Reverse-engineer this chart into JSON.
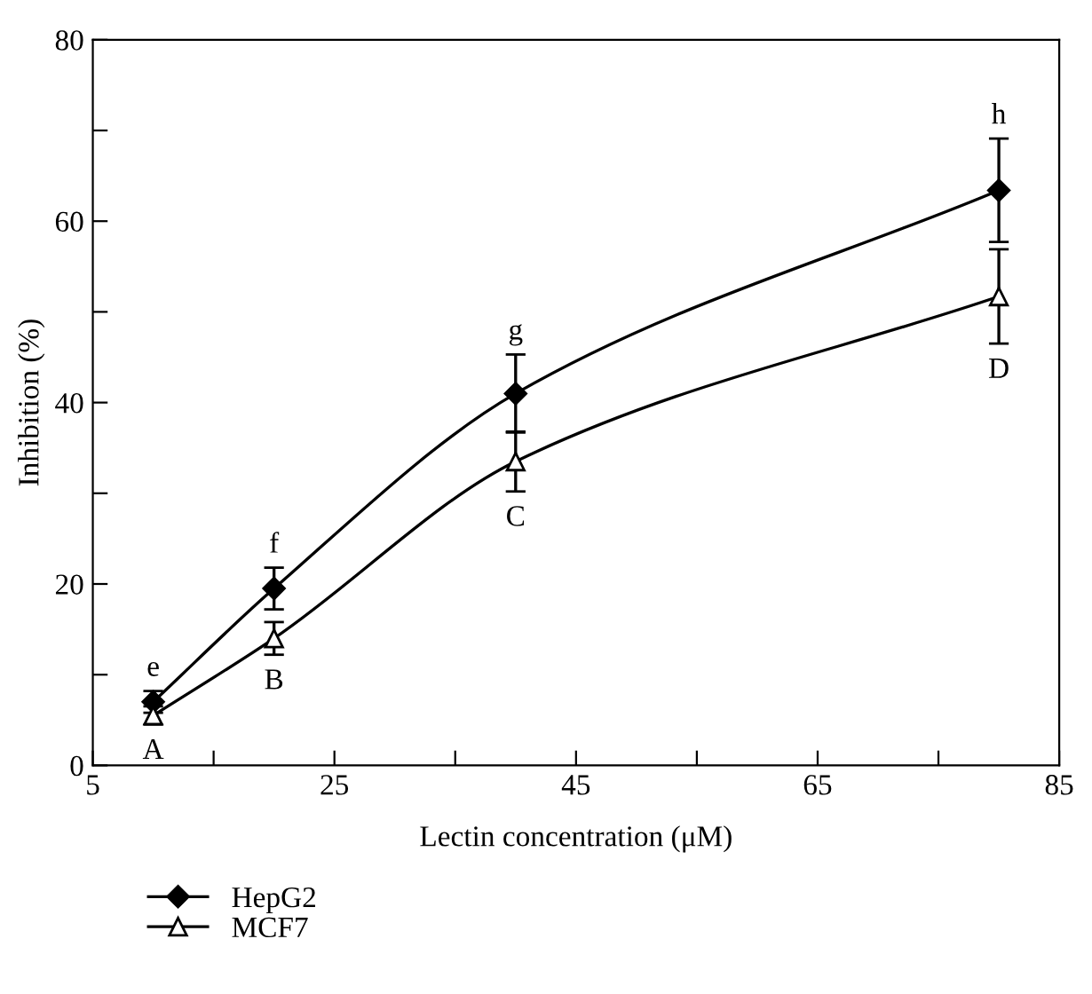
{
  "chart_data": {
    "type": "line",
    "xlabel": "Lectin concentration (μM)",
    "ylabel": "Inhibition (%)",
    "x": [
      10,
      20,
      40,
      80
    ],
    "series": [
      {
        "name": "HepG2",
        "color": "#000000",
        "marker": "diamond",
        "values": [
          7.0,
          19.5,
          41.0,
          63.4
        ],
        "errors": [
          1.2,
          2.3,
          4.3,
          5.7
        ]
      },
      {
        "name": "MCF7",
        "color": "#000000",
        "marker": "triangle",
        "values": [
          5.5,
          14.0,
          33.5,
          51.7
        ],
        "errors": [
          1.0,
          1.8,
          3.3,
          5.2
        ]
      }
    ],
    "xlim": [
      5,
      85
    ],
    "xticks": [
      5,
      {
        "value": 15,
        "label": null
      },
      25,
      {
        "value": 35,
        "label": null
      },
      45,
      {
        "value": 55,
        "label": null
      },
      65,
      {
        "value": 75,
        "label": null
      },
      85
    ],
    "ylim": [
      0,
      80
    ],
    "yticks": [
      0,
      {
        "value": 10,
        "label": null
      },
      20,
      {
        "value": 30,
        "label": null
      },
      40,
      {
        "value": 50,
        "label": null
      },
      60,
      {
        "value": 70,
        "label": null
      },
      80
    ],
    "annotations": [
      {
        "text": "e",
        "x": 10,
        "y": 7.0
      },
      {
        "text": "f",
        "x": 20,
        "y": 19.5
      },
      {
        "text": "g",
        "x": 40,
        "y": 41.0
      },
      {
        "text": "h",
        "x": 80,
        "y": 63.4
      },
      {
        "text": "A",
        "x": 10,
        "y": 5.5
      },
      {
        "text": "B",
        "x": 20,
        "y": 14.0
      },
      {
        "text": "C",
        "x": 40,
        "y": 33.5
      },
      {
        "text": "D",
        "x": 80,
        "y": 51.7
      }
    ],
    "legend": "bottom left",
    "grid": false,
    "line_style": "solid"
  }
}
